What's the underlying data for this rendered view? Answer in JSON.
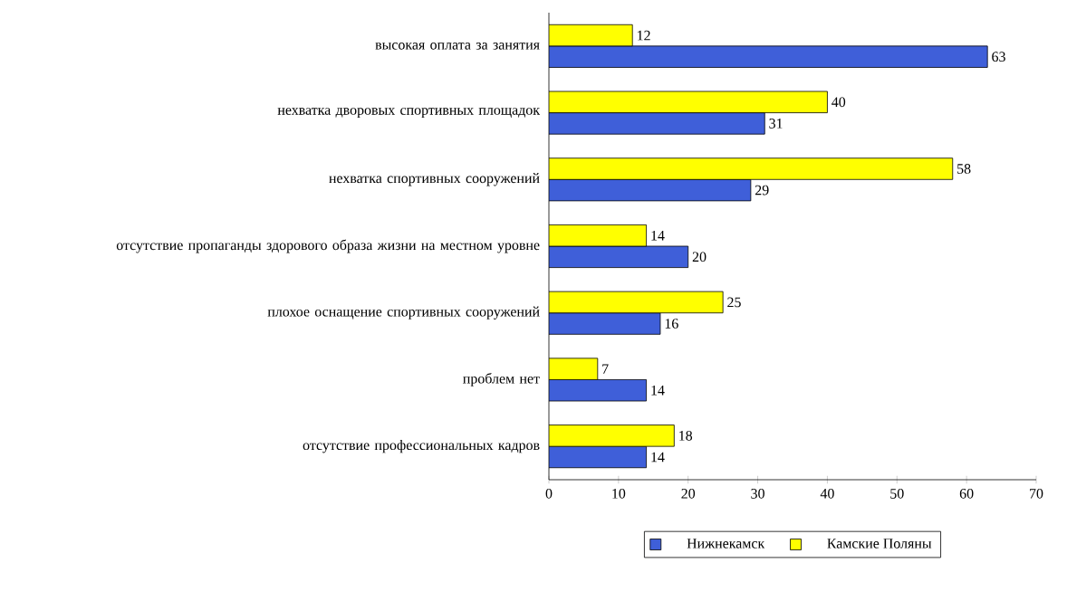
{
  "chart_data": {
    "type": "bar",
    "orientation": "horizontal",
    "categories": [
      "высокая оплата за занятия",
      "нехватка дворовых спортивных площадок",
      "нехватка спортивных сооружений",
      "отсутствие пропаганды здорового образа жизни на местном уровне",
      "плохое оснащение спортивных сооружений",
      "проблем нет",
      "отсутствие профессиональных кадров"
    ],
    "series": [
      {
        "name": "Нижнекамск",
        "color": "#3f5fd9",
        "values": [
          63,
          31,
          29,
          20,
          16,
          14,
          14
        ]
      },
      {
        "name": "Камские Поляны",
        "color": "#ffff00",
        "values": [
          12,
          40,
          58,
          14,
          25,
          7,
          18
        ]
      }
    ],
    "xlim": [
      0,
      70
    ],
    "xticks": [
      0,
      10,
      20,
      30,
      40,
      50,
      60,
      70
    ],
    "data_labels": true,
    "legend": "bottom",
    "grid": false
  }
}
